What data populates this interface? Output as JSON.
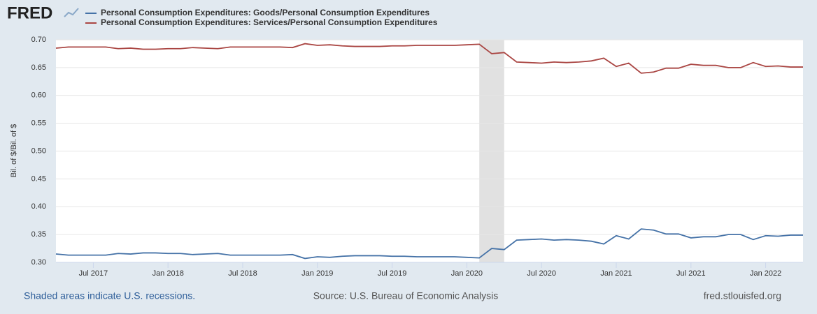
{
  "chart_data": {
    "type": "line",
    "logo": "FRED",
    "ylabel": "Bil. of $/Bil. of $",
    "footnote": "Shaded areas indicate U.S. recessions.",
    "source": "Source: U.S. Bureau of Economic Analysis",
    "site": "fred.stlouisfed.org",
    "x": [
      "2017-04",
      "2017-05",
      "2017-06",
      "2017-07",
      "2017-08",
      "2017-09",
      "2017-10",
      "2017-11",
      "2017-12",
      "2018-01",
      "2018-02",
      "2018-03",
      "2018-04",
      "2018-05",
      "2018-06",
      "2018-07",
      "2018-08",
      "2018-09",
      "2018-10",
      "2018-11",
      "2018-12",
      "2019-01",
      "2019-02",
      "2019-03",
      "2019-04",
      "2019-05",
      "2019-06",
      "2019-07",
      "2019-08",
      "2019-09",
      "2019-10",
      "2019-11",
      "2019-12",
      "2020-01",
      "2020-02",
      "2020-03",
      "2020-04",
      "2020-05",
      "2020-06",
      "2020-07",
      "2020-08",
      "2020-09",
      "2020-10",
      "2020-11",
      "2020-12",
      "2021-01",
      "2021-02",
      "2021-03",
      "2021-04",
      "2021-05",
      "2021-06",
      "2021-07",
      "2021-08",
      "2021-09",
      "2021-10",
      "2021-11",
      "2021-12",
      "2022-01",
      "2022-02",
      "2022-03",
      "2022-04"
    ],
    "series": [
      {
        "name": "Personal Consumption Expenditures: Goods/Personal Consumption Expenditures",
        "color": "#4572a7",
        "values": [
          0.315,
          0.313,
          0.313,
          0.313,
          0.313,
          0.316,
          0.315,
          0.317,
          0.317,
          0.316,
          0.316,
          0.314,
          0.315,
          0.316,
          0.313,
          0.313,
          0.313,
          0.313,
          0.313,
          0.314,
          0.307,
          0.31,
          0.309,
          0.311,
          0.312,
          0.312,
          0.312,
          0.311,
          0.311,
          0.31,
          0.31,
          0.31,
          0.31,
          0.309,
          0.308,
          0.325,
          0.323,
          0.34,
          0.341,
          0.342,
          0.34,
          0.341,
          0.34,
          0.338,
          0.333,
          0.348,
          0.342,
          0.36,
          0.358,
          0.351,
          0.351,
          0.344,
          0.346,
          0.346,
          0.35,
          0.35,
          0.341,
          0.348,
          0.347,
          0.349,
          0.349
        ]
      },
      {
        "name": "Personal Consumption Expenditures: Services/Personal Consumption Expenditures",
        "color": "#aa4643",
        "values": [
          0.685,
          0.687,
          0.687,
          0.687,
          0.687,
          0.684,
          0.685,
          0.683,
          0.683,
          0.684,
          0.684,
          0.686,
          0.685,
          0.684,
          0.687,
          0.687,
          0.687,
          0.687,
          0.687,
          0.686,
          0.693,
          0.69,
          0.691,
          0.689,
          0.688,
          0.688,
          0.688,
          0.689,
          0.689,
          0.69,
          0.69,
          0.69,
          0.69,
          0.691,
          0.692,
          0.675,
          0.677,
          0.66,
          0.659,
          0.658,
          0.66,
          0.659,
          0.66,
          0.662,
          0.667,
          0.652,
          0.658,
          0.64,
          0.642,
          0.649,
          0.649,
          0.656,
          0.654,
          0.654,
          0.65,
          0.65,
          0.659,
          0.652,
          0.653,
          0.651,
          0.651
        ]
      }
    ],
    "recessions": [
      {
        "start": "2020-02",
        "end": "2020-04"
      }
    ],
    "xlim": [
      "2017-04",
      "2022-04"
    ],
    "xticks": [
      {
        "value": "2017-07",
        "label": "Jul 2017"
      },
      {
        "value": "2018-01",
        "label": "Jan 2018"
      },
      {
        "value": "2018-07",
        "label": "Jul 2018"
      },
      {
        "value": "2019-01",
        "label": "Jan 2019"
      },
      {
        "value": "2019-07",
        "label": "Jul 2019"
      },
      {
        "value": "2020-01",
        "label": "Jan 2020"
      },
      {
        "value": "2020-07",
        "label": "Jul 2020"
      },
      {
        "value": "2021-01",
        "label": "Jan 2021"
      },
      {
        "value": "2021-07",
        "label": "Jul 2021"
      },
      {
        "value": "2022-01",
        "label": "Jan 2022"
      }
    ],
    "ylim": [
      0.3,
      0.7
    ],
    "yticks": [
      {
        "value": 0.3,
        "label": "0.30"
      },
      {
        "value": 0.35,
        "label": "0.35"
      },
      {
        "value": 0.4,
        "label": "0.40"
      },
      {
        "value": 0.45,
        "label": "0.45"
      },
      {
        "value": 0.5,
        "label": "0.50"
      },
      {
        "value": 0.55,
        "label": "0.55"
      },
      {
        "value": 0.6,
        "label": "0.60"
      },
      {
        "value": 0.65,
        "label": "0.65"
      },
      {
        "value": 0.7,
        "label": "0.70"
      }
    ],
    "grid": true
  }
}
